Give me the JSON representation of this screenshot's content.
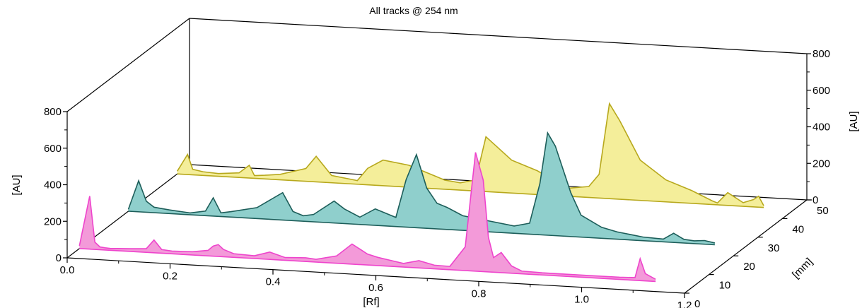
{
  "chart_data": {
    "type": "area",
    "title": "All tracks @ 254 nm",
    "xlabel": "[Rf]",
    "ylabel": "[AU]",
    "ylabel_right": "[AU]",
    "zlabel": "[mm]",
    "xlim": [
      0.0,
      1.2
    ],
    "ylim": [
      0,
      800
    ],
    "zlim": [
      0,
      50
    ],
    "x_ticks": [
      "0.0",
      "0.2",
      "0.4",
      "0.6",
      "0.8",
      "1.0",
      "1.2"
    ],
    "y_ticks": [
      "0",
      "200",
      "400",
      "600",
      "800"
    ],
    "y_ticks_right": [
      "0",
      "200",
      "400",
      "600",
      "800"
    ],
    "z_ticks": [
      "0",
      "10",
      "20",
      "30",
      "40",
      "50"
    ],
    "grid": false,
    "series": [
      {
        "color": "#ee44cc",
        "fill": "#f39ad9",
        "z": 5,
        "x": [
          0.0,
          0.02,
          0.03,
          0.04,
          0.05,
          0.06,
          0.1,
          0.13,
          0.145,
          0.16,
          0.18,
          0.22,
          0.25,
          0.26,
          0.27,
          0.28,
          0.3,
          0.34,
          0.37,
          0.4,
          0.42,
          0.44,
          0.46,
          0.5,
          0.53,
          0.56,
          0.58,
          0.6,
          0.63,
          0.66,
          0.69,
          0.72,
          0.75,
          0.77,
          0.785,
          0.795,
          0.805,
          0.82,
          0.84,
          0.86,
          0.9,
          0.95,
          1.0,
          1.05,
          1.08,
          1.09,
          1.1,
          1.12
        ],
        "y": [
          15,
          290,
          40,
          15,
          12,
          10,
          15,
          20,
          70,
          20,
          15,
          18,
          30,
          55,
          65,
          40,
          20,
          15,
          40,
          15,
          18,
          20,
          15,
          40,
          110,
          60,
          45,
          35,
          20,
          40,
          20,
          18,
          130,
          650,
          500,
          190,
          80,
          110,
          40,
          15,
          12,
          12,
          12,
          12,
          15,
          120,
          40,
          12
        ]
      },
      {
        "color": "#1d5e5a",
        "fill": "#8fcfcc",
        "z": 25,
        "x": [
          0.0,
          0.02,
          0.035,
          0.05,
          0.08,
          0.12,
          0.15,
          0.165,
          0.18,
          0.2,
          0.25,
          0.3,
          0.32,
          0.34,
          0.36,
          0.4,
          0.42,
          0.45,
          0.48,
          0.52,
          0.54,
          0.56,
          0.58,
          0.6,
          0.62,
          0.65,
          0.7,
          0.75,
          0.78,
          0.8,
          0.815,
          0.83,
          0.86,
          0.88,
          0.9,
          0.92,
          0.95,
          1.0,
          1.04,
          1.06,
          1.08,
          1.1,
          1.12,
          1.14
        ],
        "y": [
          10,
          170,
          60,
          30,
          20,
          10,
          25,
          100,
          20,
          30,
          60,
          150,
          50,
          30,
          40,
          120,
          80,
          40,
          90,
          50,
          260,
          400,
          220,
          140,
          120,
          80,
          60,
          40,
          60,
          280,
          560,
          490,
          240,
          120,
          90,
          60,
          40,
          20,
          15,
          50,
          20,
          15,
          20,
          10
        ]
      },
      {
        "color": "#b7a81c",
        "fill": "#f4ee9a",
        "z": 45,
        "x": [
          0.0,
          0.02,
          0.03,
          0.05,
          0.08,
          0.12,
          0.14,
          0.15,
          0.17,
          0.2,
          0.25,
          0.27,
          0.3,
          0.35,
          0.37,
          0.4,
          0.45,
          0.5,
          0.52,
          0.55,
          0.58,
          0.6,
          0.65,
          0.7,
          0.72,
          0.75,
          0.8,
          0.82,
          0.84,
          0.86,
          0.9,
          0.95,
          1.0,
          1.04,
          1.05,
          1.07,
          1.1,
          1.12,
          1.13,
          1.14
        ],
        "y": [
          15,
          110,
          30,
          20,
          15,
          25,
          70,
          15,
          20,
          30,
          70,
          140,
          40,
          20,
          90,
          140,
          120,
          70,
          50,
          40,
          60,
          300,
          180,
          130,
          100,
          40,
          60,
          130,
          520,
          430,
          220,
          120,
          70,
          20,
          10,
          70,
          20,
          40,
          60,
          10
        ]
      }
    ]
  }
}
